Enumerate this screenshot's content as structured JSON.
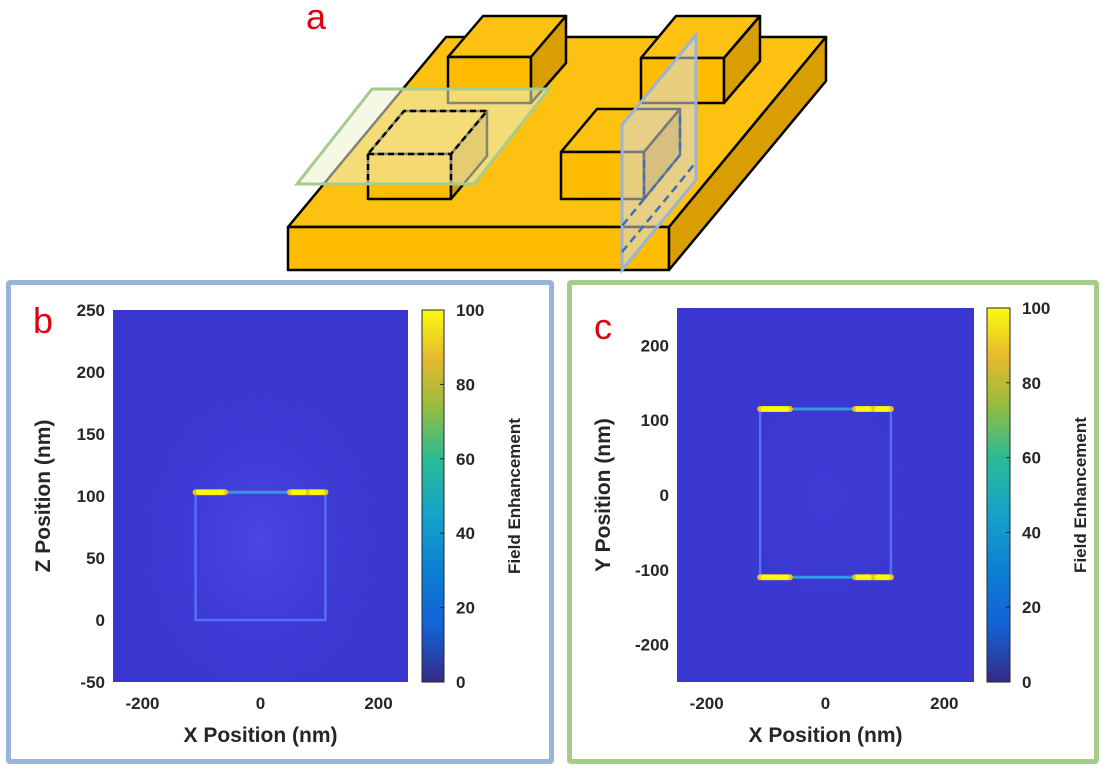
{
  "labels": {
    "a": "a",
    "b": "b",
    "c": "c"
  },
  "chart_data": [
    {
      "type": "heatmap",
      "panel": "b",
      "xlabel": "X Position (nm)",
      "ylabel": "Z Position (nm)",
      "colorbar_label": "Field Enhancement",
      "xlim": [
        -250,
        250
      ],
      "ylim": [
        -50,
        250
      ],
      "xticks": [
        -200,
        0,
        200
      ],
      "yticks": [
        -50,
        0,
        50,
        100,
        150,
        200,
        250
      ],
      "clim": [
        0,
        100
      ],
      "cticks": [
        0,
        20,
        40,
        60,
        80,
        100
      ],
      "colormap": "parula",
      "cube": {
        "x": [
          -110,
          110
        ],
        "y": [
          0,
          103
        ]
      },
      "hotspots": [
        {
          "x": [
            -110,
            -60
          ],
          "y": 103,
          "value": 100
        },
        {
          "x": [
            50,
            110
          ],
          "y": 103,
          "value": 100
        }
      ]
    },
    {
      "type": "heatmap",
      "panel": "c",
      "xlabel": "X Position (nm)",
      "ylabel": "Y Position (nm)",
      "colorbar_label": "Field Enhancement",
      "xlim": [
        -250,
        250
      ],
      "ylim": [
        -250,
        250
      ],
      "xticks": [
        -200,
        0,
        200
      ],
      "yticks": [
        -200,
        -100,
        0,
        100,
        200
      ],
      "clim": [
        0,
        100
      ],
      "cticks": [
        0,
        20,
        40,
        60,
        80,
        100
      ],
      "colormap": "parula",
      "cube": {
        "x": [
          -110,
          110
        ],
        "y": [
          -110,
          115
        ]
      },
      "hotspots": [
        {
          "x": [
            -110,
            -60
          ],
          "y": 115,
          "value": 90
        },
        {
          "x": [
            50,
            110
          ],
          "y": 115,
          "value": 90
        },
        {
          "x": [
            -110,
            -60
          ],
          "y": -110,
          "value": 90
        },
        {
          "x": [
            50,
            110
          ],
          "y": -110,
          "value": 90
        }
      ]
    }
  ],
  "colors": {
    "gold_top": "#fdc211",
    "gold_front": "#ffbc00",
    "gold_side": "#d99e02",
    "plane_green": "#a6cc8c",
    "plane_blue": "#99b4da",
    "label_red": "#e0000f",
    "heat_bg": "#3a36d0"
  }
}
